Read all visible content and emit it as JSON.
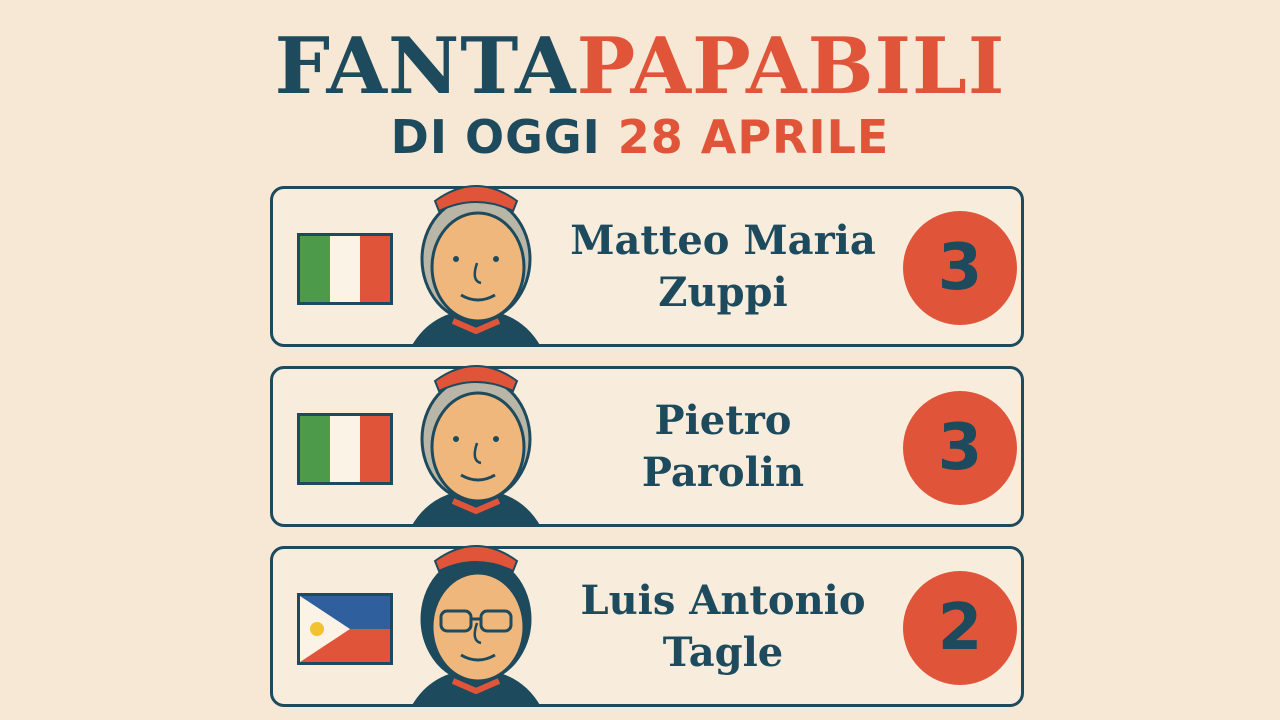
{
  "header": {
    "title_part1": "FANTA",
    "title_part2": "PAPABILI",
    "subtitle_part1": "DI OGGI",
    "subtitle_part2": "28 APRILE"
  },
  "colors": {
    "background": "#f6e8d4",
    "navy": "#1d4a5c",
    "red": "#e0553a",
    "skin": "#f0b77c"
  },
  "candidates": [
    {
      "name_line1": "Matteo Maria",
      "name_line2": "Zuppi",
      "score": "3",
      "flag": "italy-flag-icon"
    },
    {
      "name_line1": "Pietro",
      "name_line2": "Parolin",
      "score": "3",
      "flag": "italy-flag-icon"
    },
    {
      "name_line1": "Luis Antonio",
      "name_line2": "Tagle",
      "score": "2",
      "flag": "philippines-flag-icon"
    }
  ]
}
